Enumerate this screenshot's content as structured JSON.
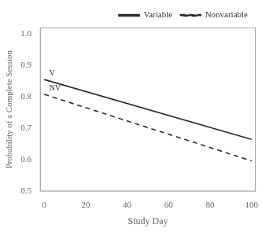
{
  "chart_data": {
    "type": "line",
    "xlabel": "Study Day",
    "ylabel": "Probability of a Complete Session",
    "x": [
      0,
      100
    ],
    "series": [
      {
        "name": "Variable",
        "color": "#2b2b2b",
        "line_style": "solid",
        "values": [
          0.855,
          0.665
        ]
      },
      {
        "name": "Nonvariable",
        "color": "#2b2b2b",
        "line_style": "dashed",
        "values": [
          0.808,
          0.597
        ]
      }
    ],
    "xlim": [
      -2,
      102
    ],
    "ylim": [
      0.5,
      1.02
    ],
    "xticks": [
      0,
      20,
      40,
      60,
      80,
      100
    ],
    "yticks": [
      0.5,
      0.6,
      0.7,
      0.8,
      0.9,
      {
        "value": 1.0,
        "label": "1.0"
      }
    ],
    "grid": false,
    "legend": "upper right",
    "annotations": [
      {
        "text": "V",
        "x": 2.5,
        "y": 0.862,
        "color": "#2b2b2b"
      },
      {
        "text": "NV",
        "x": 2.5,
        "y": 0.815,
        "color": "#2b2b2b"
      }
    ]
  }
}
